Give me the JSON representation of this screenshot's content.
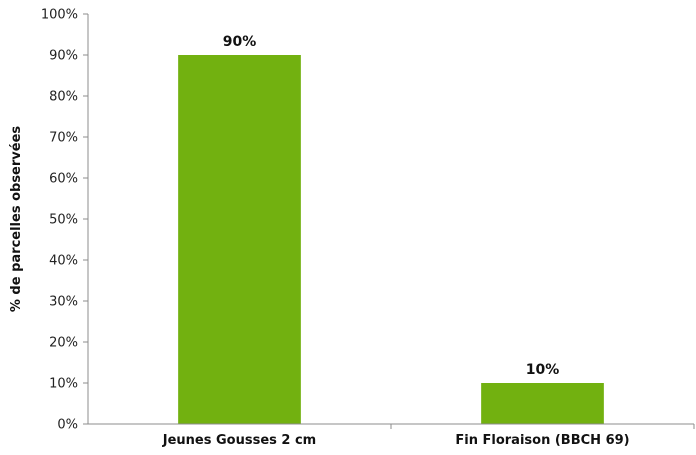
{
  "chart_data": {
    "type": "bar",
    "categories": [
      "Jeunes Gousses 2 cm",
      "Fin Floraison (BBCH 69)"
    ],
    "values": [
      90,
      10
    ],
    "data_labels": [
      "90%",
      "10%"
    ],
    "title": "",
    "xlabel": "",
    "ylabel": "% de parcelles observées",
    "ylim": [
      0,
      100
    ],
    "yticks": [
      0,
      10,
      20,
      30,
      40,
      50,
      60,
      70,
      80,
      90,
      100
    ],
    "ytick_labels": [
      "0%",
      "10%",
      "20%",
      "30%",
      "40%",
      "50%",
      "60%",
      "70%",
      "80%",
      "90%",
      "100%"
    ],
    "grid": false,
    "legend": "none",
    "colors": {
      "bar": "#72B110",
      "axis": "#8c8c8c"
    }
  }
}
